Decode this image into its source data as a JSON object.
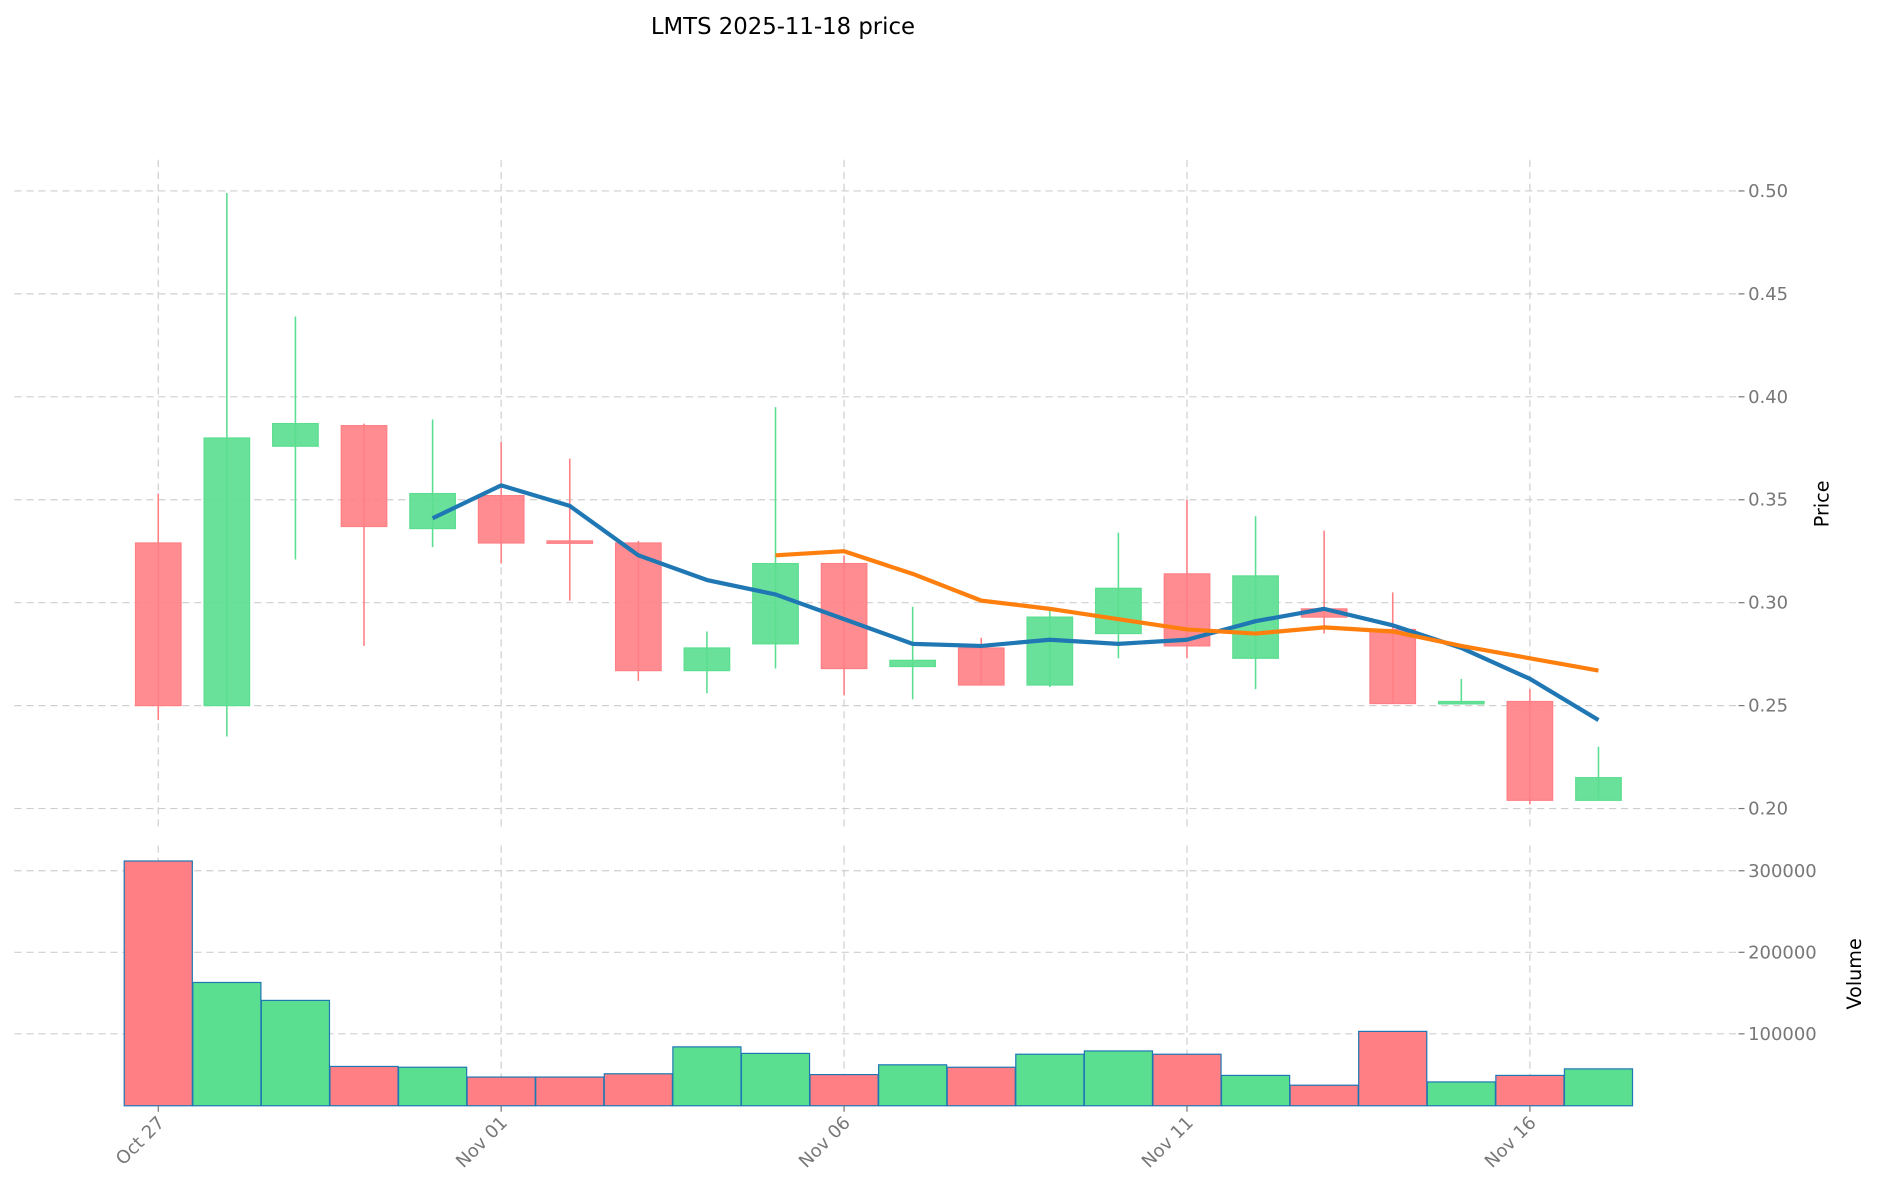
{
  "chart_data": {
    "type": "candlestick",
    "title": "LMTS  2025-11-18  price",
    "ylabel": "Price",
    "ylabel_volume": "Volume",
    "price_ylim": [
      0.195,
      0.515
    ],
    "volume_ylim": [
      12000,
      315000
    ],
    "price_ticks": [
      "0.20",
      "0.25",
      "0.30",
      "0.35",
      "0.40",
      "0.45",
      "0.50"
    ],
    "volume_ticks": [
      "100000",
      "200000",
      "300000"
    ],
    "x_tick_labels": [
      {
        "index": 0,
        "label": "Oct 27"
      },
      {
        "index": 5,
        "label": "Nov 01"
      },
      {
        "index": 10,
        "label": "Nov 06"
      },
      {
        "index": 15,
        "label": "Nov 11"
      },
      {
        "index": 20,
        "label": "Nov 16"
      }
    ],
    "dates": [
      "2025-10-27",
      "2025-10-28",
      "2025-10-29",
      "2025-10-30",
      "2025-10-31",
      "2025-11-01",
      "2025-11-02",
      "2025-11-03",
      "2025-11-04",
      "2025-11-05",
      "2025-11-06",
      "2025-11-07",
      "2025-11-08",
      "2025-11-09",
      "2025-11-10",
      "2025-11-11",
      "2025-11-12",
      "2025-11-13",
      "2025-11-14",
      "2025-11-15",
      "2025-11-16",
      "2025-11-17"
    ],
    "open": [
      0.329,
      0.25,
      0.376,
      0.386,
      0.336,
      0.352,
      0.33,
      0.329,
      0.267,
      0.28,
      0.319,
      0.269,
      0.278,
      0.26,
      0.285,
      0.314,
      0.273,
      0.297,
      0.287,
      0.251,
      0.252,
      0.204
    ],
    "high": [
      0.353,
      0.499,
      0.439,
      0.387,
      0.389,
      0.378,
      0.37,
      0.33,
      0.286,
      0.395,
      0.323,
      0.298,
      0.283,
      0.297,
      0.334,
      0.35,
      0.342,
      0.335,
      0.305,
      0.263,
      0.258,
      0.23
    ],
    "low": [
      0.243,
      0.235,
      0.321,
      0.279,
      0.327,
      0.319,
      0.301,
      0.262,
      0.256,
      0.268,
      0.255,
      0.253,
      0.26,
      0.259,
      0.273,
      0.273,
      0.258,
      0.285,
      0.251,
      0.251,
      0.202,
      0.204
    ],
    "close": [
      0.25,
      0.38,
      0.387,
      0.337,
      0.353,
      0.329,
      0.329,
      0.267,
      0.278,
      0.319,
      0.268,
      0.272,
      0.26,
      0.293,
      0.307,
      0.279,
      0.313,
      0.293,
      0.251,
      0.252,
      0.204,
      0.215
    ],
    "volume": [
      312000,
      163000,
      141000,
      60000,
      59000,
      47000,
      47000,
      51000,
      84000,
      76000,
      50000,
      62000,
      59000,
      75000,
      79000,
      75000,
      49000,
      37000,
      103000,
      41000,
      49000,
      57000
    ],
    "ma_series": [
      {
        "name": "MA5",
        "color": "#1f77b4",
        "start": 4,
        "values": [
          0.341,
          0.357,
          0.347,
          0.323,
          0.311,
          0.304,
          0.292,
          0.28,
          0.279,
          0.282,
          0.28,
          0.282,
          0.291,
          0.297,
          0.289,
          0.278,
          0.263,
          0.243
        ]
      },
      {
        "name": "MA10",
        "color": "#ff7f0e",
        "start": 9,
        "values": [
          0.323,
          0.325,
          0.314,
          0.301,
          0.297,
          0.292,
          0.287,
          0.285,
          0.288,
          0.286,
          0.279,
          0.273,
          0.267
        ]
      }
    ],
    "colors": {
      "up": "#5ade8f",
      "down": "#ff7f85",
      "volume_edge": "#1f77b4"
    },
    "grid": true
  }
}
